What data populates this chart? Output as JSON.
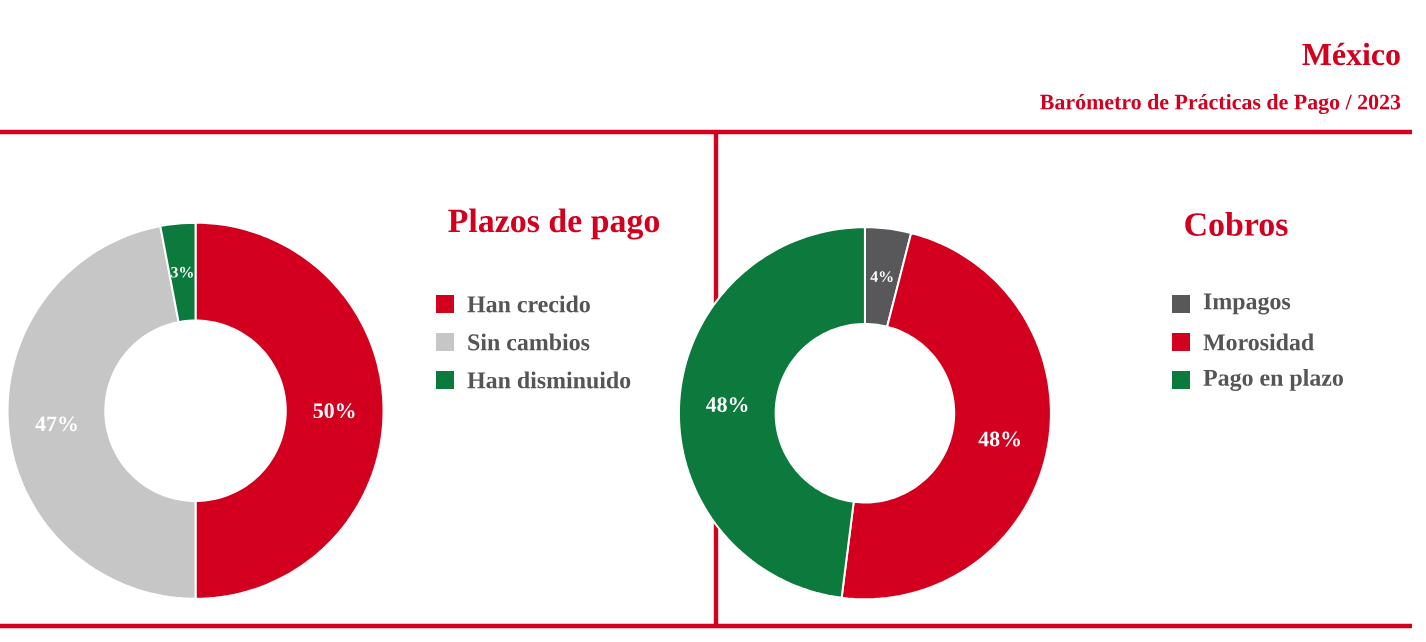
{
  "chart_data": [
    {
      "type": "donut",
      "title": "Plazos de pago",
      "annotations": [
        "México",
        "Barómetro de Prácticas de Pago / 2023"
      ],
      "categories": [
        "Han crecido",
        "Sin cambios",
        "Han disminuido"
      ],
      "values": [
        50,
        47,
        3
      ],
      "colors": [
        "#d2001e",
        "#c6c6c6",
        "#0b7a3c"
      ],
      "value_labels": [
        "50%",
        "47%",
        "3%"
      ],
      "legend": "right"
    },
    {
      "type": "donut",
      "title": "Cobros",
      "categories": [
        "Impagos",
        "Morosidad",
        "Pago en plazo"
      ],
      "values": [
        4,
        48,
        48
      ],
      "colors": [
        "#58585a",
        "#d2001e",
        "#0b7a3c"
      ],
      "value_labels": [
        "4%",
        "48%",
        "48%"
      ],
      "legend": "right"
    }
  ]
}
